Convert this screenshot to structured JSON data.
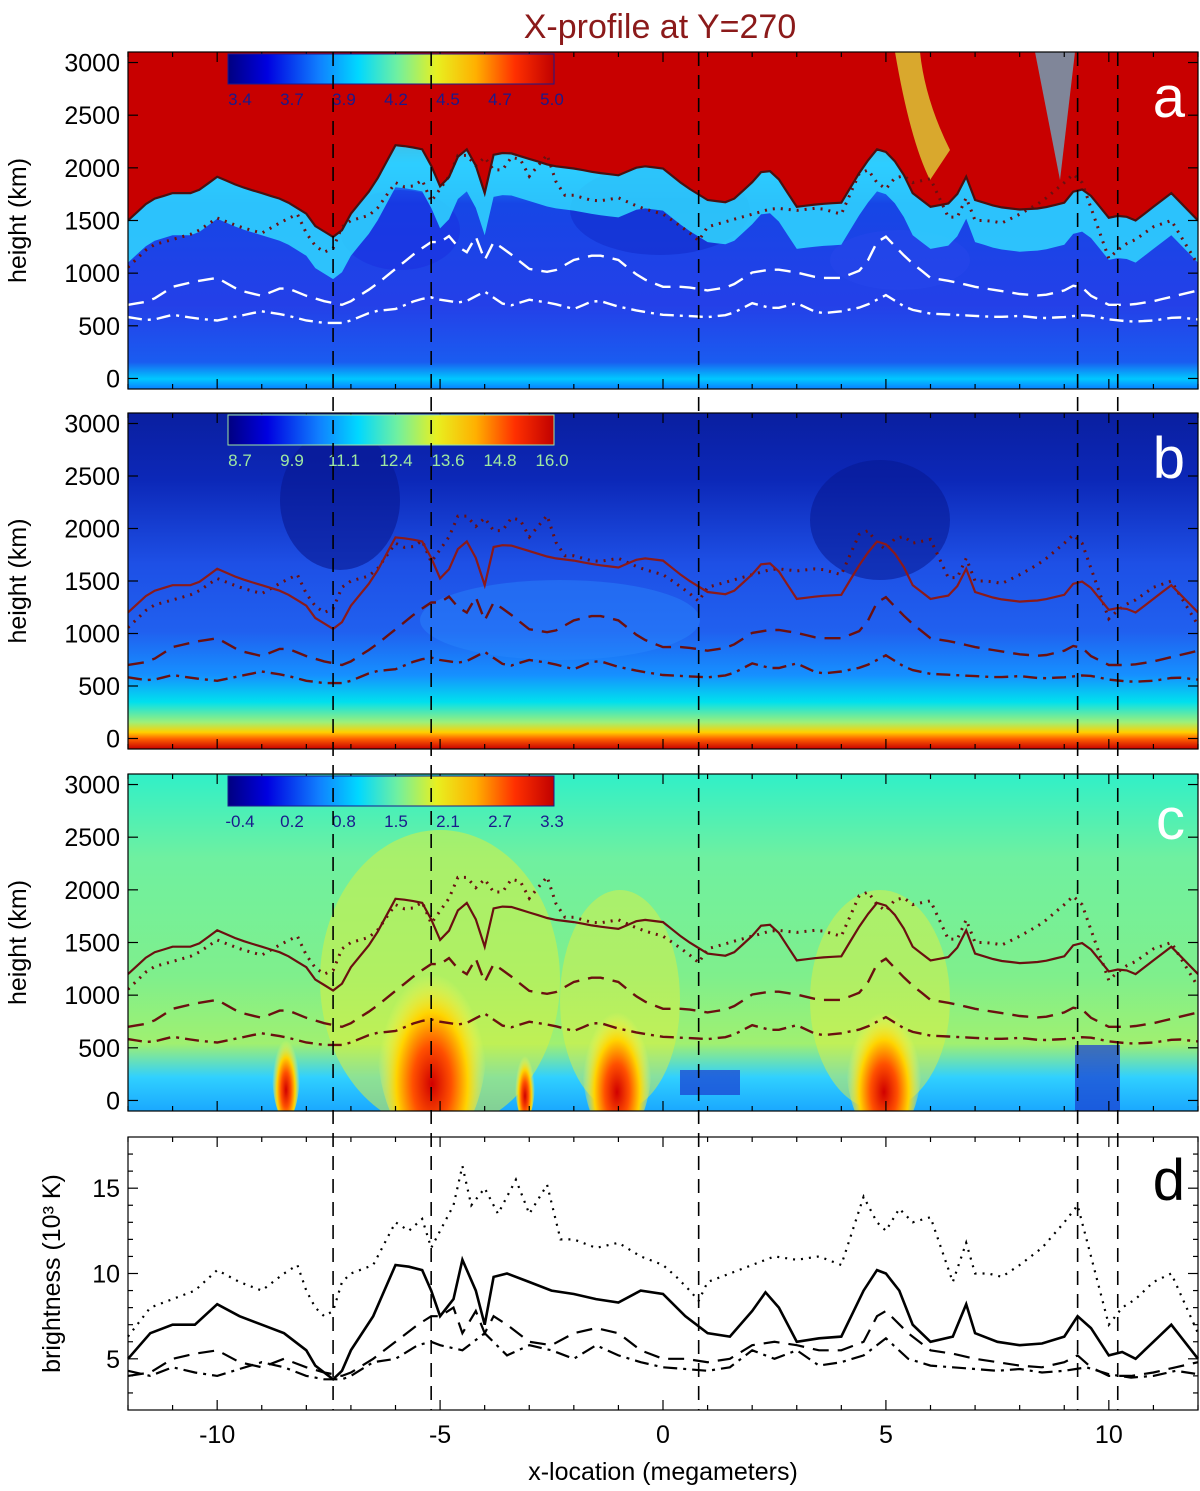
{
  "chart_data": {
    "title": "X-profile at Y=270",
    "xlabel": "x-location (megameters)",
    "xlim": [
      -12,
      12
    ],
    "xticks": [
      "-10",
      "-5",
      "0",
      "5",
      "10"
    ],
    "vlines_x": [
      -7.4,
      -5.2,
      0.8,
      9.3,
      10.2
    ],
    "panels": [
      {
        "label": "a",
        "type": "heatmap",
        "ylabel": "height (km)",
        "ylim": [
          -100,
          3100
        ],
        "yticks": [
          "0",
          "500",
          "1000",
          "1500",
          "2000",
          "2500",
          "3000"
        ],
        "colorbar": {
          "min": 3.4,
          "max": 5.0,
          "labels": [
            "3.4",
            "3.7",
            "3.9",
            "4.2",
            "4.5",
            "4.7",
            "5.0"
          ],
          "label_color": "#1a1a8c"
        },
        "contour_color": "#ffffff",
        "solid_color": "#4a1010"
      },
      {
        "label": "b",
        "type": "heatmap",
        "ylabel": "height (km)",
        "ylim": [
          -100,
          3100
        ],
        "yticks": [
          "0",
          "500",
          "1000",
          "1500",
          "2000",
          "2500",
          "3000"
        ],
        "colorbar": {
          "min": 8.7,
          "max": 16.0,
          "labels": [
            "8.7",
            "9.9",
            "11.1",
            "12.4",
            "13.6",
            "14.8",
            "16.0"
          ],
          "label_color": "#9fe8a0"
        },
        "contour_color": "#6b1010",
        "solid_color": "#8b1a1a"
      },
      {
        "label": "c",
        "type": "heatmap",
        "ylabel": "height (km)",
        "ylim": [
          -100,
          3100
        ],
        "yticks": [
          "0",
          "500",
          "1000",
          "1500",
          "2000",
          "2500",
          "3000"
        ],
        "colorbar": {
          "min": -0.4,
          "max": 3.3,
          "labels": [
            "-0.4",
            "0.2",
            "0.8",
            "1.5",
            "2.1",
            "2.7",
            "3.3"
          ],
          "label_color": "#1a1a8c"
        },
        "contour_color": "#6b1010",
        "solid_color": "#6b1010"
      },
      {
        "label": "d",
        "type": "line",
        "ylabel": "brightness (10³ K)",
        "ylim": [
          2,
          18
        ],
        "yticks": [
          "5",
          "10",
          "15"
        ],
        "series": [
          {
            "name": "solid",
            "style": "solid",
            "x": [
              -12,
              -11.5,
              -11,
              -10.5,
              -10,
              -9.5,
              -9,
              -8.5,
              -8,
              -7.8,
              -7.6,
              -7.4,
              -7.2,
              -7,
              -6.5,
              -6,
              -5.7,
              -5.4,
              -5.2,
              -5,
              -4.7,
              -4.5,
              -4.2,
              -4,
              -3.8,
              -3.5,
              -3,
              -2.5,
              -2,
              -1.5,
              -1,
              -0.5,
              0,
              0.5,
              1,
              1.5,
              2,
              2.3,
              2.6,
              3,
              3.5,
              4,
              4.5,
              4.8,
              5,
              5.3,
              5.6,
              6,
              6.5,
              6.8,
              7,
              7.5,
              8,
              8.5,
              9,
              9.3,
              9.6,
              10,
              10.3,
              10.6,
              11,
              11.4,
              12
            ],
            "y": [
              5.0,
              6.5,
              7.0,
              7.0,
              8.2,
              7.5,
              7.0,
              6.5,
              5.5,
              4.6,
              4.2,
              3.8,
              4.3,
              5.5,
              7.5,
              10.5,
              10.4,
              10.2,
              9.0,
              7.5,
              8.5,
              10.8,
              9.0,
              7.0,
              9.8,
              10.0,
              9.5,
              9.0,
              8.8,
              8.5,
              8.3,
              9.0,
              8.8,
              7.5,
              6.5,
              6.3,
              7.8,
              8.9,
              8.0,
              6.0,
              6.2,
              6.3,
              9.0,
              10.2,
              10.0,
              9.0,
              7.0,
              6.0,
              6.3,
              8.2,
              6.5,
              6.0,
              5.8,
              5.9,
              6.3,
              7.5,
              6.8,
              5.2,
              5.4,
              5.0,
              6.0,
              7.0,
              5.0
            ]
          },
          {
            "name": "dotted",
            "style": "dotted",
            "x": [
              -12,
              -11.5,
              -11,
              -10.5,
              -10,
              -9.5,
              -9,
              -8.5,
              -8.2,
              -8,
              -7.8,
              -7.6,
              -7.4,
              -7.2,
              -7,
              -6.5,
              -6,
              -5.7,
              -5.4,
              -5.2,
              -5,
              -4.7,
              -4.5,
              -4.3,
              -4,
              -3.7,
              -3.3,
              -3,
              -2.6,
              -2.3,
              -2,
              -1.5,
              -1,
              -0.5,
              0,
              0.3,
              0.6,
              0.8,
              1,
              1.5,
              2,
              2.5,
              3,
              3.5,
              4,
              4.5,
              4.8,
              5,
              5.3,
              5.6,
              6,
              6.5,
              6.8,
              7,
              7.3,
              7.6,
              8,
              8.5,
              9,
              9.3,
              9.6,
              10,
              10.3,
              10.6,
              11,
              11.4,
              12
            ],
            "y": [
              6.3,
              8.0,
              8.5,
              9.0,
              10.2,
              9.5,
              9.0,
              10.0,
              10.5,
              9.0,
              8.0,
              7.5,
              7.8,
              9.5,
              10.0,
              10.5,
              13.0,
              12.5,
              13.2,
              11.5,
              12.5,
              14.0,
              16.3,
              14.0,
              15.0,
              13.5,
              15.5,
              13.5,
              15.2,
              12.0,
              12.0,
              11.5,
              11.8,
              11.0,
              10.5,
              9.8,
              9.0,
              8.4,
              9.5,
              10.0,
              10.5,
              11.0,
              10.8,
              11.0,
              10.5,
              14.5,
              13.0,
              12.5,
              13.8,
              13.0,
              13.3,
              9.5,
              11.8,
              10.0,
              10.0,
              9.8,
              10.5,
              11.5,
              13.0,
              14.0,
              11.0,
              7.0,
              8.0,
              8.5,
              9.5,
              10.0,
              6.5
            ]
          },
          {
            "name": "dashed",
            "style": "dashed",
            "x": [
              -12,
              -11.5,
              -11,
              -10.5,
              -10,
              -9.5,
              -9,
              -8.5,
              -8,
              -7.6,
              -7.2,
              -7,
              -6.5,
              -6,
              -5.5,
              -5.2,
              -5,
              -4.7,
              -4.5,
              -4.2,
              -4,
              -3.8,
              -3.5,
              -3,
              -2.5,
              -2,
              -1.5,
              -1,
              -0.5,
              0,
              0.5,
              1,
              1.5,
              2,
              2.5,
              3,
              3.5,
              4,
              4.5,
              4.8,
              5,
              5.5,
              6,
              6.5,
              7,
              7.5,
              8,
              8.5,
              9,
              9.3,
              9.6,
              10,
              10.5,
              11,
              11.5,
              12
            ],
            "y": [
              4.0,
              4.2,
              5.0,
              5.3,
              5.5,
              4.8,
              4.5,
              5.0,
              4.5,
              4.2,
              4.0,
              4.2,
              5.0,
              6.0,
              7.0,
              7.5,
              7.5,
              8.0,
              6.5,
              7.8,
              6.5,
              7.5,
              7.0,
              6.0,
              5.8,
              6.5,
              6.8,
              6.5,
              5.5,
              5.0,
              5.0,
              4.8,
              5.0,
              5.8,
              6.0,
              5.8,
              5.5,
              5.5,
              6.0,
              7.5,
              7.8,
              6.5,
              5.5,
              5.3,
              5.0,
              4.8,
              4.6,
              4.5,
              4.8,
              5.2,
              4.5,
              4.0,
              4.0,
              4.2,
              4.5,
              4.8
            ]
          },
          {
            "name": "dash-dot",
            "style": "dashdot",
            "x": [
              -12,
              -11.5,
              -11,
              -10.5,
              -10,
              -9.5,
              -9,
              -8.5,
              -8,
              -7.6,
              -7.2,
              -7,
              -6.5,
              -6,
              -5.5,
              -5.2,
              -5,
              -4.5,
              -4,
              -3.5,
              -3,
              -2.5,
              -2,
              -1.5,
              -1,
              -0.5,
              0,
              0.5,
              1,
              1.5,
              2,
              2.5,
              3,
              3.5,
              4,
              4.5,
              5,
              5.5,
              6,
              6.5,
              7,
              7.5,
              8,
              8.5,
              9,
              9.5,
              10,
              10.5,
              11,
              11.5,
              12
            ],
            "y": [
              4.3,
              4.0,
              4.5,
              4.2,
              4.0,
              4.4,
              4.8,
              4.5,
              4.0,
              3.8,
              3.8,
              4.0,
              4.8,
              5.0,
              5.8,
              6.0,
              5.8,
              5.5,
              6.5,
              5.2,
              5.8,
              5.5,
              5.0,
              5.8,
              5.2,
              4.8,
              4.5,
              4.4,
              4.3,
              4.5,
              5.5,
              5.0,
              5.5,
              4.6,
              4.8,
              5.2,
              6.2,
              5.0,
              4.6,
              4.5,
              4.4,
              4.3,
              4.4,
              4.2,
              4.3,
              4.5,
              4.1,
              3.9,
              4.0,
              4.3,
              4.1
            ]
          }
        ]
      }
    ]
  }
}
